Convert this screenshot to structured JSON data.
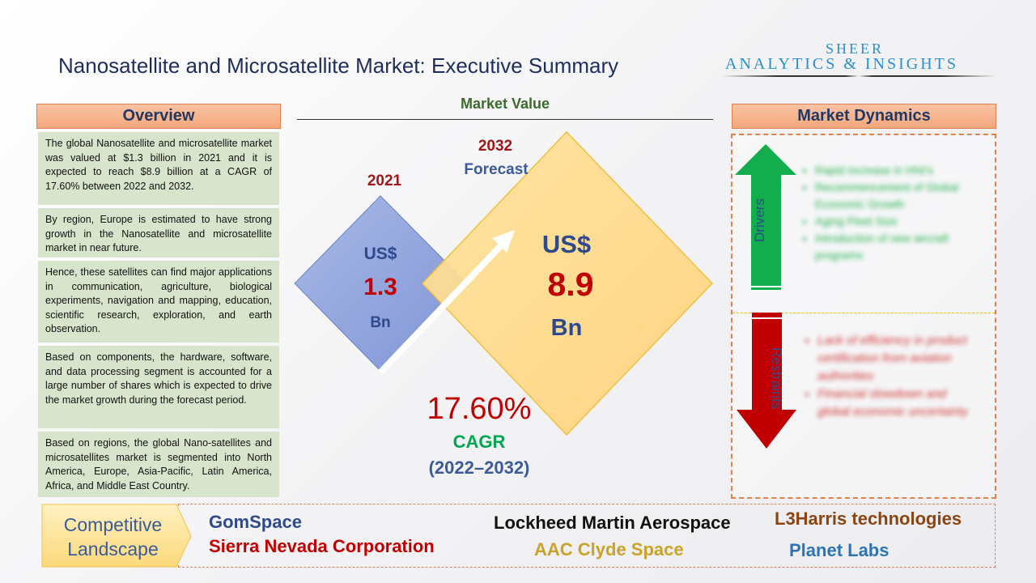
{
  "title": "Nanosatellite and Microsatellite Market: Executive Summary",
  "logo": {
    "line1": "SHEER",
    "line2": "ANALYTICS & INSIGHTS"
  },
  "overview": {
    "header": "Overview",
    "paragraphs": [
      "The global Nanosatellite and microsatellite market was valued at $1.3 billion in 2021 and it is expected to reach $8.9 billion at a CAGR of 17.60% between 2022 and 2032.",
      "By region, Europe is estimated to have strong growth in the Nanosatellite and microsatellite market in near future.",
      "Hence, these satellites can find major applications in communication, agriculture, biological experiments, navigation and mapping, education, scientific research, exploration, and earth observation.",
      "Based on components, the hardware, software, and data processing segment is accounted for a large number of shares which is expected to drive the market growth during the forecast period.",
      "Based on regions, the global Nano-satellites and microsatellites market is segmented into North America, Europe, Asia-Pacific, Latin America, Africa, and Middle East Country."
    ]
  },
  "market_value": {
    "title": "Market Value",
    "y2021": "2021",
    "v2021_prefix": "US$",
    "v2021": "1.3",
    "v2021_unit": "Bn",
    "y2032": "2032",
    "forecast": "Forecast",
    "v2032_prefix": "US$",
    "v2032": "8.9",
    "v2032_unit": "Bn",
    "cagr_value": "17.60%",
    "cagr_label": "CAGR",
    "cagr_period": "(2022–2032)"
  },
  "dynamics": {
    "header": "Market Dynamics",
    "drivers_label": "Drivers",
    "restraints_label": "Restraints",
    "drivers": [
      "Rapid increase in HNI's",
      "Recommencement of Global Economic Growth",
      "Aging Fleet Size",
      "Introduction of new aircraft programs"
    ],
    "restraints": [
      "Lack of efficiency in product certification from aviation authorities",
      "Financial slowdown and global economic uncertainty"
    ]
  },
  "competitive": {
    "label_line1": "Competitive",
    "label_line2": "Landscape",
    "companies": [
      {
        "name": "GomSpace",
        "color": "#2e4a8c"
      },
      {
        "name": "Sierra Nevada Corporation",
        "color": "#c00000"
      },
      {
        "name": "Lockheed Martin Aerospace",
        "color": "#111111"
      },
      {
        "name": "AAC Clyde Space",
        "color": "#c9a227"
      },
      {
        "name": "L3Harris technologies",
        "color": "#8b4513"
      },
      {
        "name": "Planet Labs",
        "color": "#2e74b5"
      }
    ]
  },
  "colors": {
    "navy": "#1f3864",
    "red": "#c00000",
    "green": "#00b050",
    "orange": "#e0814f"
  }
}
